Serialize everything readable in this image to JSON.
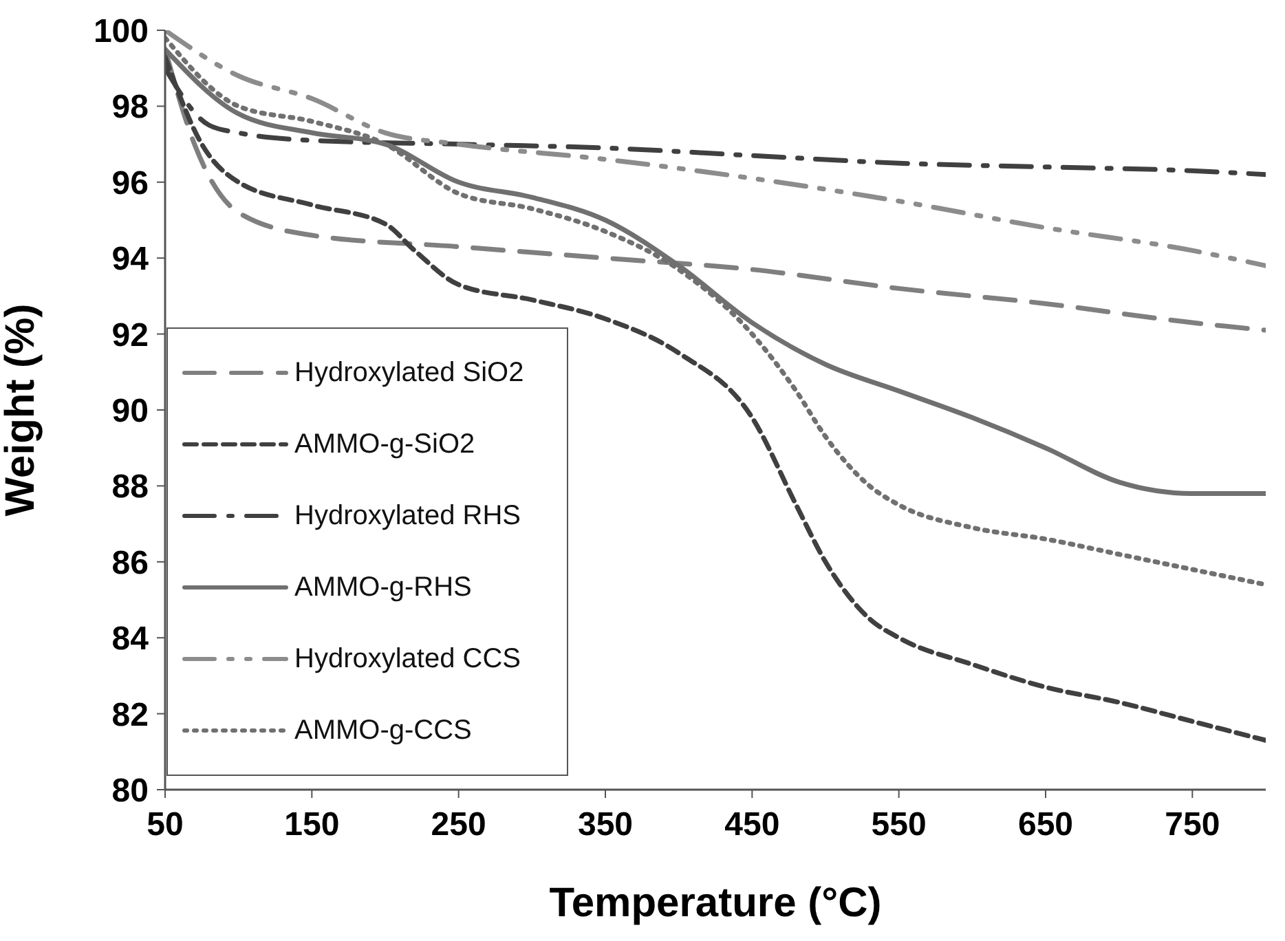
{
  "chart_data": {
    "type": "line",
    "xlabel": "Temperature (°C)",
    "ylabel": "Weight (%)",
    "xlim": [
      50,
      800
    ],
    "xticks": [
      50,
      150,
      250,
      350,
      450,
      550,
      650,
      750
    ],
    "ylim": [
      80,
      100
    ],
    "yticks": [
      80,
      82,
      84,
      86,
      88,
      90,
      92,
      94,
      96,
      98,
      100
    ],
    "grid": false,
    "legend": "bottom left",
    "marker": "none",
    "series": [
      {
        "name": "Hydroxylated SiO2",
        "color": "#7f7f7f",
        "line_style": "long_dashed",
        "x": [
          50,
          70,
          100,
          150,
          250,
          350,
          450,
          550,
          650,
          750,
          800
        ],
        "values": [
          99.5,
          97,
          95.2,
          94.6,
          94.3,
          94.0,
          93.7,
          93.2,
          92.8,
          92.3,
          92.1
        ]
      },
      {
        "name": "AMMO-g-SiO2",
        "color": "#404040",
        "line_style": "dashed",
        "x": [
          50,
          75,
          100,
          150,
          200,
          220,
          250,
          300,
          350,
          400,
          450,
          480,
          500,
          530,
          550,
          600,
          650,
          700,
          750,
          800
        ],
        "values": [
          99.3,
          97,
          96,
          95.4,
          94.9,
          94.2,
          93.3,
          92.9,
          92.4,
          91.5,
          89.8,
          87.5,
          86,
          84.5,
          84,
          83.3,
          82.7,
          82.3,
          81.8,
          81.3
        ]
      },
      {
        "name": "Hydroxylated RHS",
        "color": "#404040",
        "line_style": "dash_dot",
        "x": [
          50,
          80,
          100,
          150,
          250,
          350,
          450,
          550,
          650,
          750,
          800
        ],
        "values": [
          99,
          97.5,
          97.3,
          97.1,
          97.0,
          96.9,
          96.7,
          96.5,
          96.4,
          96.3,
          96.2
        ]
      },
      {
        "name": "AMMO-g-RHS",
        "color": "#707070",
        "line_style": "solid",
        "x": [
          50,
          100,
          150,
          200,
          250,
          300,
          350,
          400,
          450,
          500,
          550,
          600,
          650,
          700,
          750,
          800
        ],
        "values": [
          99.5,
          97.8,
          97.3,
          97.0,
          96.0,
          95.6,
          95.0,
          93.8,
          92.3,
          91.2,
          90.5,
          89.8,
          89.0,
          88.1,
          87.8,
          87.8
        ]
      },
      {
        "name": "Hydroxylated CCS",
        "color": "#8c8c8c",
        "line_style": "dash_dot_dot",
        "x": [
          50,
          100,
          150,
          200,
          250,
          350,
          450,
          550,
          650,
          750,
          800
        ],
        "values": [
          100,
          98.8,
          98.2,
          97.3,
          97.0,
          96.6,
          96.1,
          95.5,
          94.8,
          94.2,
          93.8
        ]
      },
      {
        "name": "AMMO-g-CCS",
        "color": "#707070",
        "line_style": "dotted",
        "x": [
          50,
          100,
          150,
          200,
          250,
          300,
          350,
          400,
          450,
          480,
          500,
          530,
          550,
          600,
          650,
          700,
          750,
          800
        ],
        "values": [
          99.8,
          98,
          97.6,
          97.0,
          95.7,
          95.3,
          94.7,
          93.7,
          92.0,
          90.5,
          89.3,
          88.0,
          87.5,
          86.9,
          86.6,
          86.2,
          85.8,
          85.4
        ]
      }
    ]
  }
}
